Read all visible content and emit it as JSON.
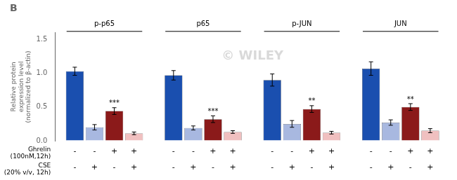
{
  "chart_data": {
    "type": "bar",
    "title": "B",
    "categories": [
      "p-p65",
      "p65",
      "p-JUN",
      "JUN"
    ],
    "series": [
      {
        "color": "#1a4faf",
        "values": [
          1.03,
          0.97,
          0.9,
          1.07
        ],
        "errors": [
          0.06,
          0.07,
          0.09,
          0.1
        ],
        "significance": [
          null,
          null,
          null,
          null
        ]
      },
      {
        "color": "#a8b8e0",
        "values": [
          0.2,
          0.19,
          0.25,
          0.27
        ],
        "errors": [
          0.04,
          0.03,
          0.05,
          0.04
        ],
        "significance": [
          null,
          null,
          null,
          null
        ]
      },
      {
        "color": "#8b1a1a",
        "values": [
          0.44,
          0.32,
          0.47,
          0.5
        ],
        "errors": [
          0.05,
          0.05,
          0.05,
          0.05
        ],
        "significance": [
          "***",
          "***",
          "**",
          "**"
        ]
      },
      {
        "color": "#f0c0c0",
        "values": [
          0.11,
          0.13,
          0.12,
          0.15
        ],
        "errors": [
          0.02,
          0.02,
          0.02,
          0.03
        ],
        "significance": [
          null,
          null,
          null,
          null
        ]
      }
    ],
    "ylabel": "Relative protein\nexpression level\n(normalized to β-actin)",
    "ylim": [
      0.0,
      1.6
    ],
    "yticks": [
      {
        "value": 0.0,
        "label": "0.0"
      },
      {
        "value": 0.5,
        "label": "0.5"
      },
      {
        "value": 1.0,
        "label": "1.0"
      },
      {
        "value": 1.5,
        "label": "1.5"
      }
    ],
    "grid": false,
    "annotations": [
      {
        "text": "Ghrelin\n(100nM,12h)",
        "signs": [
          "-",
          "-",
          "+",
          "+"
        ]
      },
      {
        "text": "CSE\n(20% v/v, 12h)",
        "signs": [
          "-",
          "+",
          "-",
          "+"
        ]
      }
    ],
    "watermark": "© WILEY"
  }
}
